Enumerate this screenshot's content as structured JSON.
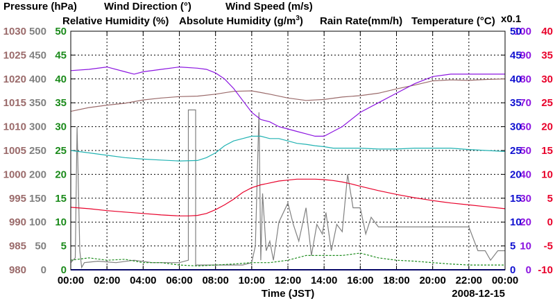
{
  "chart_data": {
    "type": "line",
    "date": "2008-12-15",
    "xlabel": "Time (JST)",
    "x_ticks": [
      "00:00",
      "02:00",
      "04:00",
      "06:00",
      "08:00",
      "10:00",
      "12:00",
      "14:00",
      "16:00",
      "18:00",
      "20:00",
      "22:00",
      "00:00"
    ],
    "xlim": [
      0,
      24
    ],
    "legend": {
      "pressure": "Pressure (hPa)",
      "wind_direction": "Wind Direction (°)",
      "wind_speed": "Wind Speed (m/s)",
      "relative_humidity": "Relative Humidity (%)",
      "absolute_humidity_prefix": "Absolute Humidity (g/m",
      "absolute_humidity_sup": "3",
      "absolute_humidity_suffix": ")",
      "rain_rate": "Rain Rate(mm/h)",
      "temperature": "Temperature (°C)",
      "scale_note": "x0.1"
    },
    "colors": {
      "pressure": "#9a6a6a",
      "wind_direction": "#808080",
      "wind_speed": "#1a8a1a",
      "relative_humidity": "#8b14e0",
      "absolute_humidity": "#20b2b2",
      "rain_rate": "#1010d0",
      "temperature": "#e8002a"
    },
    "axes": {
      "pressure": {
        "ticks": [
          "980",
          "985",
          "990",
          "995",
          "1000",
          "1005",
          "1010",
          "1015",
          "1020",
          "1025",
          "1030"
        ],
        "ylim": [
          980,
          1030
        ]
      },
      "wind_direction": {
        "ticks": [
          "0",
          "50",
          "100",
          "150",
          "200",
          "250",
          "300",
          "350",
          "400",
          "450",
          "500"
        ],
        "ylim": [
          0,
          500
        ]
      },
      "wind_speed": {
        "ticks": [
          "0",
          "5",
          "10",
          "15",
          "20",
          "25",
          "30",
          "35",
          "40",
          "45",
          "50"
        ],
        "ylim": [
          0,
          50
        ]
      },
      "relative_humidity": {
        "ticks": [
          "0",
          "10",
          "20",
          "30",
          "40",
          "50",
          "60",
          "70",
          "80",
          "90",
          "100"
        ],
        "ylim": [
          0,
          100
        ]
      },
      "rain_rate": {
        "ticks": [
          "0",
          "5",
          "10",
          "15",
          "20",
          "25",
          "30",
          "35",
          "40",
          "45",
          "50"
        ],
        "ylim": [
          0,
          50
        ]
      },
      "temperature": {
        "ticks": [
          "-10",
          "-5",
          "0",
          "5",
          "10",
          "15",
          "20",
          "25",
          "30",
          "35",
          "40"
        ],
        "ylim": [
          -10,
          40
        ]
      }
    },
    "series": [
      {
        "name": "Pressure (hPa)",
        "key": "pressure",
        "axis": "pressure",
        "x": [
          0,
          1,
          2,
          3,
          4,
          5,
          6,
          7,
          8,
          9,
          10,
          11,
          12,
          13,
          14,
          15,
          16,
          17,
          18,
          19,
          20,
          21,
          22,
          23,
          24
        ],
        "y": [
          1013.2,
          1014.0,
          1014.5,
          1014.9,
          1015.6,
          1016.0,
          1016.3,
          1016.4,
          1016.8,
          1017.4,
          1017.5,
          1016.8,
          1016.0,
          1015.5,
          1015.7,
          1016.2,
          1016.5,
          1017.0,
          1017.9,
          1018.7,
          1019.6,
          1019.8,
          1019.7,
          1019.9,
          1020.0
        ]
      },
      {
        "name": "Wind Direction (°)",
        "key": "wind_direction",
        "axis": "wind_direction",
        "x": [
          0,
          0.25,
          0.35,
          0.5,
          0.6,
          0.75,
          1.5,
          2.5,
          3.5,
          4.5,
          5.5,
          6.0,
          6.5,
          6.5,
          6.9,
          6.9,
          7.5,
          8.5,
          9.5,
          10.0,
          10.2,
          10.4,
          10.5,
          10.6,
          10.8,
          11.0,
          11.2,
          11.5,
          12.0,
          12.3,
          12.6,
          13.0,
          13.3,
          13.6,
          13.9,
          14.1,
          14.4,
          14.7,
          15.0,
          15.3,
          15.6,
          16.0,
          16.3,
          16.6,
          17.0,
          18.0,
          19.0,
          20.0,
          21.0,
          22.0,
          22.5,
          22.9,
          23.2,
          23.6,
          24
        ],
        "y": [
          15,
          25,
          300,
          40,
          5,
          15,
          18,
          15,
          20,
          15,
          15,
          15,
          20,
          335,
          335,
          10,
          10,
          10,
          10,
          15,
          50,
          330,
          20,
          160,
          40,
          60,
          20,
          100,
          140,
          95,
          60,
          130,
          30,
          95,
          75,
          120,
          40,
          95,
          80,
          200,
          130,
          130,
          75,
          110,
          90,
          90,
          90,
          90,
          90,
          90,
          40,
          40,
          20,
          40,
          40
        ]
      },
      {
        "name": "Wind Speed (m/s)",
        "key": "wind_speed",
        "axis": "wind_speed",
        "x": [
          0,
          1,
          2,
          3,
          4,
          5,
          6,
          7,
          8,
          9,
          10,
          11,
          12,
          13,
          14,
          15,
          16,
          17,
          18,
          19,
          20,
          21,
          22,
          23,
          24
        ],
        "y": [
          2.0,
          2.5,
          2.0,
          2.2,
          1.5,
          1.5,
          1.0,
          0.8,
          1.0,
          1.2,
          1.5,
          1.5,
          2.0,
          3.0,
          3.0,
          3.0,
          3.5,
          2.5,
          2.0,
          1.8,
          1.5,
          1.2,
          1.0,
          1.0,
          1.0
        ]
      },
      {
        "name": "Relative Humidity (%)",
        "key": "relative_humidity",
        "axis": "relative_humidity",
        "x": [
          0,
          1,
          2,
          3,
          3.5,
          4,
          5,
          6,
          7,
          7.5,
          8,
          8.5,
          9,
          9.5,
          10,
          10.5,
          11,
          11.5,
          12,
          12.5,
          13,
          13.5,
          14,
          14.5,
          15,
          15.5,
          16,
          17,
          18,
          19,
          20,
          21,
          22,
          23,
          24
        ],
        "y": [
          83.5,
          84,
          85,
          83,
          82,
          83,
          84,
          85,
          84.5,
          84,
          82.5,
          80,
          76,
          71,
          66,
          63,
          62,
          60,
          59,
          58,
          57,
          56,
          56,
          58,
          60,
          63,
          66,
          70,
          74,
          78,
          81,
          82,
          82,
          82,
          82
        ]
      },
      {
        "name": "Absolute Humidity (g/m3)",
        "key": "absolute_humidity",
        "axis": "wind_speed",
        "x": [
          0,
          1,
          2,
          3,
          4,
          5,
          6,
          7,
          7.5,
          8,
          8.5,
          9,
          9.5,
          10,
          10.5,
          11,
          11.5,
          12,
          12.5,
          13,
          13.5,
          14,
          14.5,
          15,
          16,
          17,
          18,
          19,
          20,
          21,
          22,
          23,
          24
        ],
        "y": [
          25.0,
          24.5,
          24.0,
          23.5,
          23.2,
          23.0,
          22.8,
          22.9,
          23.5,
          24.5,
          26.0,
          27.0,
          27.5,
          28.0,
          28.0,
          27.5,
          27.5,
          27.0,
          26.5,
          26.3,
          26.0,
          25.8,
          25.5,
          25.5,
          25.5,
          25.3,
          25.3,
          25.5,
          25.5,
          25.5,
          25.2,
          25.0,
          24.8
        ]
      },
      {
        "name": "Rain Rate(mm/h)",
        "key": "rain_rate",
        "axis": "rain_rate",
        "x": [
          0,
          24
        ],
        "y": [
          0,
          0
        ]
      },
      {
        "name": "Temperature (°C)",
        "key": "temperature",
        "axis": "temperature",
        "x": [
          0,
          1,
          2,
          3,
          4,
          5,
          6,
          6.5,
          7,
          7.5,
          8,
          8.5,
          9,
          9.5,
          10,
          10.5,
          11,
          11.5,
          12,
          12.5,
          13,
          13.5,
          14,
          14.5,
          15,
          15.5,
          16,
          17,
          18,
          19,
          20,
          21,
          22,
          23,
          24
        ],
        "y": [
          3.1,
          2.8,
          2.4,
          2.1,
          1.8,
          1.5,
          1.3,
          1.3,
          1.4,
          1.8,
          2.6,
          3.6,
          4.8,
          6.2,
          7.2,
          7.8,
          8.2,
          8.6,
          8.8,
          9.0,
          9.0,
          9.0,
          8.9,
          8.7,
          8.4,
          8.0,
          7.5,
          6.6,
          5.8,
          5.1,
          4.5,
          4.0,
          3.6,
          3.2,
          2.8
        ]
      }
    ]
  }
}
